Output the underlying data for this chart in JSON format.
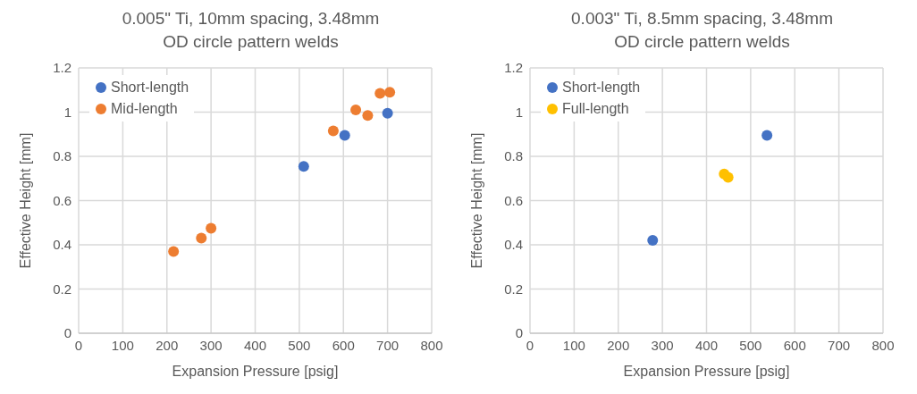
{
  "chart_data": [
    {
      "type": "scatter",
      "title": "0.005\" Ti, 10mm spacing, 3.48mm OD circle pattern welds",
      "xlabel": "Expansion Pressure [psig]",
      "ylabel": "Effective Height [mm]",
      "xlim": [
        0,
        800
      ],
      "xticks": [
        0,
        100,
        200,
        300,
        400,
        500,
        600,
        700,
        800
      ],
      "ylim": [
        0,
        1.2
      ],
      "yticks": [
        0,
        0.2,
        0.4,
        0.6,
        0.8,
        1,
        1.2
      ],
      "grid": true,
      "legend": "top left",
      "marker": "circle",
      "series": [
        {
          "name": "Short-length",
          "color": "#4472c4",
          "x": [
            510,
            603,
            700
          ],
          "values": [
            0.755,
            0.895,
            0.995
          ]
        },
        {
          "name": "Mid-length",
          "color": "#ed7d31",
          "x": [
            215,
            278,
            300,
            577,
            628,
            655,
            683,
            705
          ],
          "values": [
            0.37,
            0.43,
            0.475,
            0.915,
            1.01,
            0.985,
            1.085,
            1.09
          ]
        }
      ]
    },
    {
      "type": "scatter",
      "title": "0.003\" Ti, 8.5mm spacing, 3.48mm OD circle pattern welds",
      "xlabel": "Expansion Pressure [psig]",
      "ylabel": "Effective Height [mm]",
      "xlim": [
        0,
        800
      ],
      "xticks": [
        0,
        100,
        200,
        300,
        400,
        500,
        600,
        700,
        800
      ],
      "ylim": [
        0,
        1.2
      ],
      "yticks": [
        0,
        0.2,
        0.4,
        0.6,
        0.8,
        1,
        1.2
      ],
      "grid": true,
      "legend": "top left",
      "marker": "circle",
      "series": [
        {
          "name": "Short-length",
          "color": "#4472c4",
          "x": [
            278,
            537
          ],
          "values": [
            0.42,
            0.895
          ]
        },
        {
          "name": "Full-length",
          "color": "#ffc000",
          "x": [
            440,
            449
          ],
          "values": [
            0.72,
            0.705
          ]
        }
      ]
    }
  ]
}
